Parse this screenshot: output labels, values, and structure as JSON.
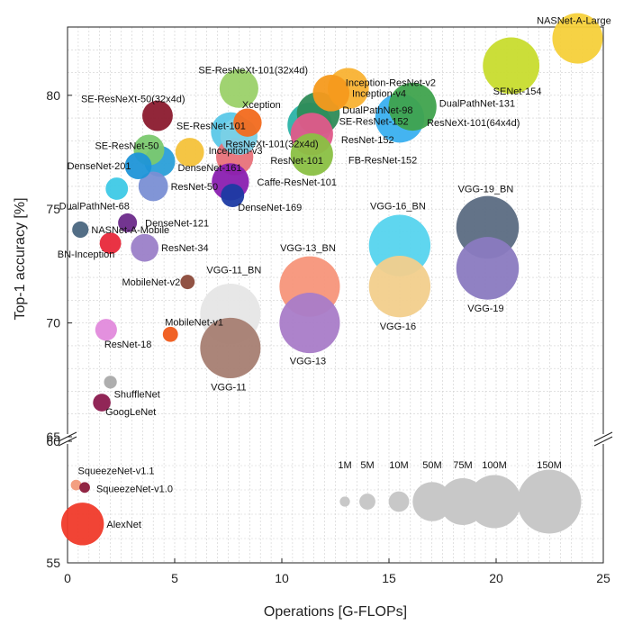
{
  "chart_data": {
    "type": "scatter",
    "subtype": "bubble",
    "title": "",
    "xlabel": "Operations [G-FLOPs]",
    "ylabel": "Top-1 accuracy [%]",
    "xlim": [
      0,
      25
    ],
    "ylim_upper": [
      65,
      83
    ],
    "ylim_lower": [
      55,
      60
    ],
    "x_ticks": [
      0,
      5,
      10,
      15,
      20,
      25
    ],
    "y_ticks_upper": [
      65,
      70,
      75,
      80
    ],
    "y_ticks_lower": [
      55,
      60
    ],
    "grid": true,
    "size_legend": {
      "entries": [
        {
          "label": "1M",
          "params": 1
        },
        {
          "label": "5M",
          "params": 5
        },
        {
          "label": "10M",
          "params": 10
        },
        {
          "label": "50M",
          "params": 50
        },
        {
          "label": "75M",
          "params": 75
        },
        {
          "label": "100M",
          "params": 100
        },
        {
          "label": "150M",
          "params": 150
        }
      ],
      "color": "#c8c8c8"
    },
    "points": [
      {
        "name": "NASNet-A-Large",
        "x": 23.8,
        "y": 82.5,
        "params": 88.9,
        "color": "#f5d03a"
      },
      {
        "name": "SENet-154",
        "x": 20.7,
        "y": 81.3,
        "params": 115,
        "color": "#c8dc2e"
      },
      {
        "name": "SE-ResNeXt-101(32x4d)",
        "x": 8.0,
        "y": 80.3,
        "params": 49,
        "color": "#9bd169"
      },
      {
        "name": "Inception-ResNet-v2",
        "x": 13.1,
        "y": 80.3,
        "params": 55.8,
        "color": "#f9b233"
      },
      {
        "name": "Inception-v4",
        "x": 12.3,
        "y": 80.1,
        "params": 42.7,
        "color": "#f59a1c"
      },
      {
        "name": "DualPathNet-131",
        "x": 16.1,
        "y": 79.5,
        "params": 79.3,
        "color": "#3fa34d"
      },
      {
        "name": "DualPathNet-98",
        "x": 11.7,
        "y": 79.2,
        "params": 61.6,
        "color": "#2e8b57"
      },
      {
        "name": "SE-ResNeXt-50(32x4d)",
        "x": 4.2,
        "y": 79.1,
        "params": 27.6,
        "color": "#8b1a2e"
      },
      {
        "name": "ResNeXt-101(64x4d)",
        "x": 15.5,
        "y": 79.0,
        "params": 83.5,
        "color": "#3ab0f0"
      },
      {
        "name": "Xception",
        "x": 8.4,
        "y": 78.8,
        "params": 22.9,
        "color": "#f26a1e"
      },
      {
        "name": "SE-ResNet-152",
        "x": 11.3,
        "y": 78.7,
        "params": 66.8,
        "color": "#2bb3a8"
      },
      {
        "name": "SE-ResNet-101",
        "x": 7.6,
        "y": 78.4,
        "params": 49.3,
        "color": "#5bc8e8"
      },
      {
        "name": "ResNeXt-101(32x4d)",
        "x": 8.0,
        "y": 78.2,
        "params": 44.2,
        "color": "#7ad0e6"
      },
      {
        "name": "ResNet-152",
        "x": 11.4,
        "y": 78.3,
        "params": 60.2,
        "color": "#e05a8a"
      },
      {
        "name": "Inception-v3",
        "x": 5.7,
        "y": 77.5,
        "params": 23.8,
        "color": "#f4c23a"
      },
      {
        "name": "FB-ResNet-152",
        "x": 11.4,
        "y": 77.4,
        "params": 60.2,
        "color": "#8ac043"
      },
      {
        "name": "SE-ResNet-50",
        "x": 3.8,
        "y": 77.6,
        "params": 28.1,
        "color": "#7bc96f"
      },
      {
        "name": "ResNet-101",
        "x": 7.8,
        "y": 77.3,
        "params": 44.5,
        "color": "#e8727a"
      },
      {
        "name": "DenseNet-161",
        "x": 4.3,
        "y": 77.1,
        "params": 28.7,
        "color": "#2a9fd8"
      },
      {
        "name": "DenseNet-201",
        "x": 3.3,
        "y": 76.9,
        "params": 20,
        "color": "#1f95d8"
      },
      {
        "name": "Caffe-ResNet-101",
        "x": 7.6,
        "y": 76.2,
        "params": 44.5,
        "color": "#8a1fb0"
      },
      {
        "name": "ResNet-50",
        "x": 4.0,
        "y": 76.0,
        "params": 25.6,
        "color": "#7a8fd4"
      },
      {
        "name": "DualPathNet-68",
        "x": 2.3,
        "y": 75.9,
        "params": 12.6,
        "color": "#3ec9e6"
      },
      {
        "name": "DenseNet-169",
        "x": 7.7,
        "y": 75.6,
        "params": 14.1,
        "color": "#1c3aa3"
      },
      {
        "name": "DenseNet-121",
        "x": 2.8,
        "y": 74.4,
        "params": 8,
        "color": "#6b2a8a"
      },
      {
        "name": "NASNet-A-Mobile",
        "x": 0.6,
        "y": 74.1,
        "params": 5.3,
        "color": "#4a6680"
      },
      {
        "name": "VGG-19_BN",
        "x": 19.6,
        "y": 74.2,
        "params": 143.7,
        "color": "#5b6b82"
      },
      {
        "name": "VGG-16_BN",
        "x": 15.5,
        "y": 73.4,
        "params": 138.4,
        "color": "#56d4ee"
      },
      {
        "name": "BN-Inception",
        "x": 2.0,
        "y": 73.5,
        "params": 11.3,
        "color": "#e8283a"
      },
      {
        "name": "ResNet-34",
        "x": 3.6,
        "y": 73.3,
        "params": 21.8,
        "color": "#9b7fc8"
      },
      {
        "name": "VGG-19",
        "x": 19.6,
        "y": 72.4,
        "params": 143.7,
        "color": "#8a7ac0"
      },
      {
        "name": "MobileNet-v2",
        "x": 5.6,
        "y": 71.8,
        "params": 3.5,
        "color": "#8b4a3a"
      },
      {
        "name": "VGG-16",
        "x": 15.5,
        "y": 71.6,
        "params": 138.4,
        "color": "#f2cf8c"
      },
      {
        "name": "VGG-13_BN",
        "x": 11.3,
        "y": 71.6,
        "params": 133,
        "color": "#f7957a"
      },
      {
        "name": "VGG-11_BN",
        "x": 7.6,
        "y": 70.4,
        "params": 132.9,
        "color": "#e6e6e6"
      },
      {
        "name": "VGG-13",
        "x": 11.3,
        "y": 70.0,
        "params": 133,
        "color": "#a97cc8"
      },
      {
        "name": "ResNet-18",
        "x": 1.8,
        "y": 69.7,
        "params": 11.7,
        "color": "#e28adc"
      },
      {
        "name": "MobileNet-v1",
        "x": 4.8,
        "y": 69.5,
        "params": 4.2,
        "color": "#f05a1a"
      },
      {
        "name": "VGG-11",
        "x": 7.6,
        "y": 68.9,
        "params": 132.9,
        "color": "#a67e72"
      },
      {
        "name": "ShuffleNet",
        "x": 2.0,
        "y": 67.4,
        "params": 2.4,
        "color": "#aaaaaa"
      },
      {
        "name": "GoogLeNet",
        "x": 1.6,
        "y": 66.5,
        "params": 6.6,
        "color": "#8b1a4e"
      },
      {
        "name": "SqueezeNet-v1.1",
        "x": 0.4,
        "y": 58.2,
        "params": 1.2,
        "color": "#f29a7a"
      },
      {
        "name": "SqueezeNet-v1.0",
        "x": 0.8,
        "y": 58.1,
        "params": 1.2,
        "color": "#8b1a3a"
      },
      {
        "name": "AlexNet",
        "x": 0.7,
        "y": 56.6,
        "params": 61.1,
        "color": "#f03a2a"
      }
    ]
  }
}
